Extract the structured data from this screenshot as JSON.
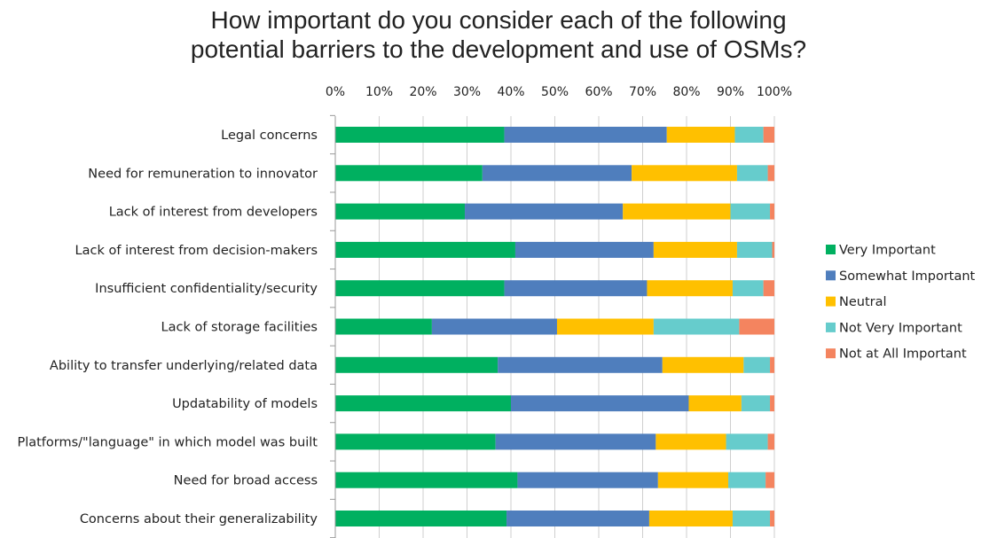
{
  "title": {
    "line1": "How important do you consider each of the following",
    "line2": "potential barriers to the development and use of OSMs?"
  },
  "chart_data": {
    "type": "bar",
    "orientation": "horizontal",
    "stacked": "100%",
    "categories": [
      "Legal concerns",
      "Need for remuneration to innovator",
      "Lack of interest from developers",
      "Lack of interest from decision-makers",
      "Insufficient confidentiality/security",
      "Lack of storage facilities",
      "Ability to transfer underlying/related data",
      "Updatability of models",
      "Platforms/\"language\" in which model was built",
      "Need for broad access",
      "Concerns about their generalizability"
    ],
    "series": [
      {
        "name": "Very Important",
        "color": "#00B060",
        "values": [
          38.5,
          33.5,
          29.5,
          41,
          38.5,
          22,
          37,
          40,
          36.5,
          41.5,
          39
        ]
      },
      {
        "name": "Somewhat Important",
        "color": "#4F7EBD",
        "values": [
          37,
          34,
          36,
          31.5,
          32.5,
          28.5,
          37.5,
          40.5,
          36.5,
          32,
          32.5
        ]
      },
      {
        "name": "Neutral",
        "color": "#FFC000",
        "values": [
          15.5,
          24,
          24.5,
          19,
          19.5,
          22,
          18.5,
          12,
          16,
          16,
          19
        ]
      },
      {
        "name": "Not Very Important",
        "color": "#66CCCC",
        "values": [
          6.5,
          7,
          9,
          8,
          7,
          19.5,
          6,
          6.5,
          9.5,
          8.5,
          8.5
        ]
      },
      {
        "name": "Not at All Important",
        "color": "#F4845F",
        "values": [
          2.5,
          1.5,
          1,
          0.5,
          2.5,
          8,
          1,
          1,
          1.5,
          2,
          1
        ]
      }
    ],
    "xlim": [
      0,
      100
    ],
    "xticks": [
      "0%",
      "10%",
      "20%",
      "30%",
      "40%",
      "50%",
      "60%",
      "70%",
      "80%",
      "90%",
      "100%"
    ],
    "grid": true,
    "legend_position": "right"
  }
}
